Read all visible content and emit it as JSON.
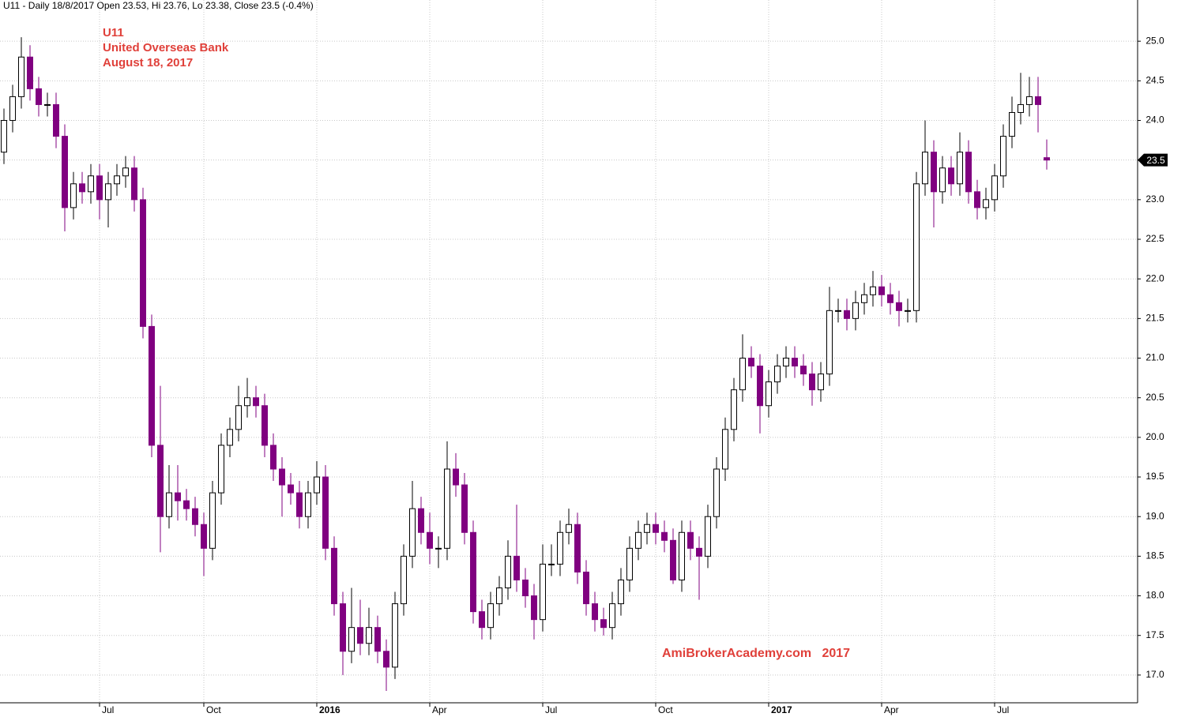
{
  "chart_data": {
    "type": "candlestick",
    "header": "U11 - Daily 18/8/2017 Open 23.53, Hi 23.76, Lo 23.38, Close 23.5 (-0.4%)",
    "annotations": [
      "U11",
      "United Overseas Bank",
      "August 18, 2017"
    ],
    "watermark": "AmiBrokerAcademy.com   2017",
    "up_color": "#000000",
    "down_color": "#800080",
    "ylim": [
      16.65,
      25.52
    ],
    "yticks": [
      {
        "value": 17,
        "label": "17.0"
      },
      17.5,
      {
        "value": 18,
        "label": "18.0"
      },
      18.5,
      {
        "value": 19,
        "label": "19.0"
      },
      19.5,
      {
        "value": 20,
        "label": "20.0"
      },
      20.5,
      {
        "value": 21,
        "label": "21.0"
      },
      21.5,
      {
        "value": 22,
        "label": "22.0"
      },
      22.5,
      {
        "value": 23,
        "label": "23.0"
      },
      23.5,
      {
        "value": 24,
        "label": "24.0"
      },
      24.5,
      {
        "value": 25,
        "label": "25.0"
      }
    ],
    "grid": true,
    "last_price": 23.5,
    "categories": [
      null,
      null,
      null,
      null,
      null,
      null,
      null,
      null,
      null,
      null,
      null,
      "Jul",
      null,
      null,
      null,
      null,
      null,
      null,
      null,
      null,
      null,
      null,
      null,
      "Oct",
      null,
      null,
      null,
      null,
      null,
      null,
      null,
      null,
      null,
      null,
      null,
      null,
      "2016",
      null,
      null,
      null,
      null,
      null,
      null,
      null,
      null,
      null,
      null,
      null,
      null,
      "Apr",
      null,
      null,
      null,
      null,
      null,
      null,
      null,
      null,
      null,
      null,
      null,
      null,
      "Jul",
      null,
      null,
      null,
      null,
      null,
      null,
      null,
      null,
      null,
      null,
      null,
      null,
      "Oct",
      null,
      null,
      null,
      null,
      null,
      null,
      null,
      null,
      null,
      null,
      null,
      null,
      "2017",
      null,
      null,
      null,
      null,
      null,
      null,
      null,
      null,
      null,
      null,
      null,
      null,
      "Apr",
      null,
      null,
      null,
      null,
      null,
      null,
      null,
      null,
      null,
      null,
      null,
      null,
      "Jul",
      null,
      null,
      null,
      null,
      null,
      null
    ],
    "ohlc": [
      [
        23.6,
        24.15,
        23.45,
        24.0
      ],
      [
        24.0,
        24.45,
        23.85,
        24.3
      ],
      [
        24.3,
        25.05,
        24.15,
        24.8
      ],
      [
        24.8,
        24.95,
        24.25,
        24.4
      ],
      [
        24.4,
        24.55,
        24.05,
        24.2
      ],
      [
        24.2,
        24.35,
        24.05,
        24.2
      ],
      [
        24.2,
        24.35,
        23.65,
        23.8
      ],
      [
        23.8,
        23.95,
        22.6,
        22.9
      ],
      [
        22.9,
        23.35,
        22.75,
        23.2
      ],
      [
        23.2,
        23.35,
        22.95,
        23.1
      ],
      [
        23.1,
        23.45,
        22.95,
        23.3
      ],
      [
        23.3,
        23.45,
        22.75,
        23.0
      ],
      [
        23.0,
        23.35,
        22.65,
        23.2
      ],
      [
        23.2,
        23.45,
        23.05,
        23.3
      ],
      [
        23.3,
        23.55,
        23.15,
        23.4
      ],
      [
        23.4,
        23.55,
        22.85,
        23.0
      ],
      [
        23.0,
        23.15,
        21.25,
        21.4
      ],
      [
        21.4,
        21.55,
        19.75,
        19.9
      ],
      [
        19.9,
        20.65,
        18.55,
        19.0
      ],
      [
        19.0,
        19.65,
        18.85,
        19.3
      ],
      [
        19.3,
        19.65,
        18.95,
        19.2
      ],
      [
        19.2,
        19.35,
        18.95,
        19.1
      ],
      [
        19.1,
        19.25,
        18.75,
        18.9
      ],
      [
        18.9,
        19.05,
        18.25,
        18.6
      ],
      [
        18.6,
        19.45,
        18.45,
        19.3
      ],
      [
        19.3,
        20.05,
        19.15,
        19.9
      ],
      [
        19.9,
        20.25,
        19.75,
        20.1
      ],
      [
        20.1,
        20.65,
        19.95,
        20.4
      ],
      [
        20.4,
        20.75,
        20.25,
        20.5
      ],
      [
        20.5,
        20.65,
        20.25,
        20.4
      ],
      [
        20.4,
        20.55,
        19.75,
        19.9
      ],
      [
        19.9,
        20.05,
        19.45,
        19.6
      ],
      [
        19.6,
        19.75,
        19.0,
        19.4
      ],
      [
        19.4,
        19.55,
        19.15,
        19.3
      ],
      [
        19.3,
        19.45,
        18.85,
        19.0
      ],
      [
        19.0,
        19.45,
        18.85,
        19.3
      ],
      [
        19.3,
        19.7,
        19.15,
        19.5
      ],
      [
        19.5,
        19.65,
        18.45,
        18.6
      ],
      [
        18.6,
        18.75,
        17.75,
        17.9
      ],
      [
        17.9,
        18.05,
        17.0,
        17.3
      ],
      [
        17.3,
        18.1,
        17.15,
        17.6
      ],
      [
        17.6,
        17.95,
        17.25,
        17.4
      ],
      [
        17.4,
        17.85,
        17.25,
        17.6
      ],
      [
        17.6,
        17.75,
        17.15,
        17.3
      ],
      [
        17.3,
        17.45,
        16.8,
        17.1
      ],
      [
        17.1,
        18.05,
        16.95,
        17.9
      ],
      [
        17.9,
        18.65,
        17.75,
        18.5
      ],
      [
        18.5,
        19.45,
        18.35,
        19.1
      ],
      [
        19.1,
        19.25,
        18.65,
        18.8
      ],
      [
        18.8,
        19.05,
        18.4,
        18.6
      ],
      [
        18.6,
        18.75,
        18.35,
        18.6
      ],
      [
        18.6,
        19.95,
        18.45,
        19.6
      ],
      [
        19.6,
        19.8,
        19.25,
        19.4
      ],
      [
        19.4,
        19.55,
        18.65,
        18.8
      ],
      [
        18.8,
        18.95,
        17.65,
        17.8
      ],
      [
        17.8,
        17.95,
        17.45,
        17.6
      ],
      [
        17.6,
        18.05,
        17.45,
        17.9
      ],
      [
        17.9,
        18.25,
        17.75,
        18.1
      ],
      [
        18.1,
        18.7,
        17.95,
        18.5
      ],
      [
        18.5,
        19.15,
        18.05,
        18.2
      ],
      [
        18.2,
        18.35,
        17.85,
        18.0
      ],
      [
        18.0,
        18.15,
        17.45,
        17.7
      ],
      [
        17.7,
        18.65,
        17.55,
        18.4
      ],
      [
        18.4,
        18.65,
        18.25,
        18.4
      ],
      [
        18.4,
        18.95,
        18.25,
        18.8
      ],
      [
        18.8,
        19.1,
        18.65,
        18.9
      ],
      [
        18.9,
        19.05,
        18.15,
        18.3
      ],
      [
        18.3,
        18.45,
        17.75,
        17.9
      ],
      [
        17.9,
        18.05,
        17.55,
        17.7
      ],
      [
        17.7,
        17.85,
        17.5,
        17.6
      ],
      [
        17.6,
        18.05,
        17.45,
        17.9
      ],
      [
        17.9,
        18.35,
        17.75,
        18.2
      ],
      [
        18.2,
        18.75,
        18.05,
        18.6
      ],
      [
        18.6,
        18.95,
        18.45,
        18.8
      ],
      [
        18.8,
        19.05,
        18.65,
        18.9
      ],
      [
        18.9,
        19.05,
        18.65,
        18.8
      ],
      [
        18.8,
        18.95,
        18.55,
        18.7
      ],
      [
        18.7,
        18.85,
        18.15,
        18.2
      ],
      [
        18.2,
        18.95,
        18.05,
        18.8
      ],
      [
        18.8,
        18.95,
        18.45,
        18.6
      ],
      [
        18.6,
        18.75,
        17.95,
        18.5
      ],
      [
        18.5,
        19.15,
        18.35,
        19.0
      ],
      [
        19.0,
        19.75,
        18.85,
        19.6
      ],
      [
        19.6,
        20.25,
        19.45,
        20.1
      ],
      [
        20.1,
        20.75,
        19.95,
        20.6
      ],
      [
        20.6,
        21.3,
        20.45,
        21.0
      ],
      [
        21.0,
        21.15,
        20.75,
        20.9
      ],
      [
        20.9,
        21.05,
        20.05,
        20.4
      ],
      [
        20.4,
        20.85,
        20.25,
        20.7
      ],
      [
        20.7,
        21.05,
        20.55,
        20.9
      ],
      [
        20.9,
        21.15,
        20.75,
        21.0
      ],
      [
        21.0,
        21.15,
        20.75,
        20.9
      ],
      [
        20.9,
        21.05,
        20.65,
        20.8
      ],
      [
        20.8,
        20.95,
        20.4,
        20.6
      ],
      [
        20.6,
        20.95,
        20.45,
        20.8
      ],
      [
        20.8,
        21.9,
        20.65,
        21.6
      ],
      [
        21.6,
        21.75,
        21.45,
        21.6
      ],
      [
        21.6,
        21.75,
        21.35,
        21.5
      ],
      [
        21.5,
        21.85,
        21.35,
        21.7
      ],
      [
        21.7,
        21.95,
        21.55,
        21.8
      ],
      [
        21.8,
        22.1,
        21.65,
        21.9
      ],
      [
        21.9,
        22.05,
        21.65,
        21.8
      ],
      [
        21.8,
        21.95,
        21.55,
        21.7
      ],
      [
        21.7,
        21.85,
        21.4,
        21.6
      ],
      [
        21.6,
        21.75,
        21.45,
        21.6
      ],
      [
        21.6,
        23.35,
        21.45,
        23.2
      ],
      [
        23.2,
        24.0,
        23.05,
        23.6
      ],
      [
        23.6,
        23.75,
        22.65,
        23.1
      ],
      [
        23.1,
        23.55,
        22.95,
        23.4
      ],
      [
        23.4,
        23.55,
        23.05,
        23.2
      ],
      [
        23.2,
        23.85,
        23.05,
        23.6
      ],
      [
        23.6,
        23.75,
        22.95,
        23.1
      ],
      [
        23.1,
        23.25,
        22.75,
        22.9
      ],
      [
        22.9,
        23.15,
        22.75,
        23.0
      ],
      [
        23.0,
        23.45,
        22.85,
        23.3
      ],
      [
        23.3,
        23.95,
        23.15,
        23.8
      ],
      [
        23.8,
        24.3,
        23.65,
        24.1
      ],
      [
        24.1,
        24.6,
        23.95,
        24.2
      ],
      [
        24.2,
        24.55,
        24.05,
        24.3
      ],
      [
        24.3,
        24.55,
        23.85,
        24.2
      ],
      [
        23.53,
        23.76,
        23.38,
        23.5
      ]
    ]
  }
}
